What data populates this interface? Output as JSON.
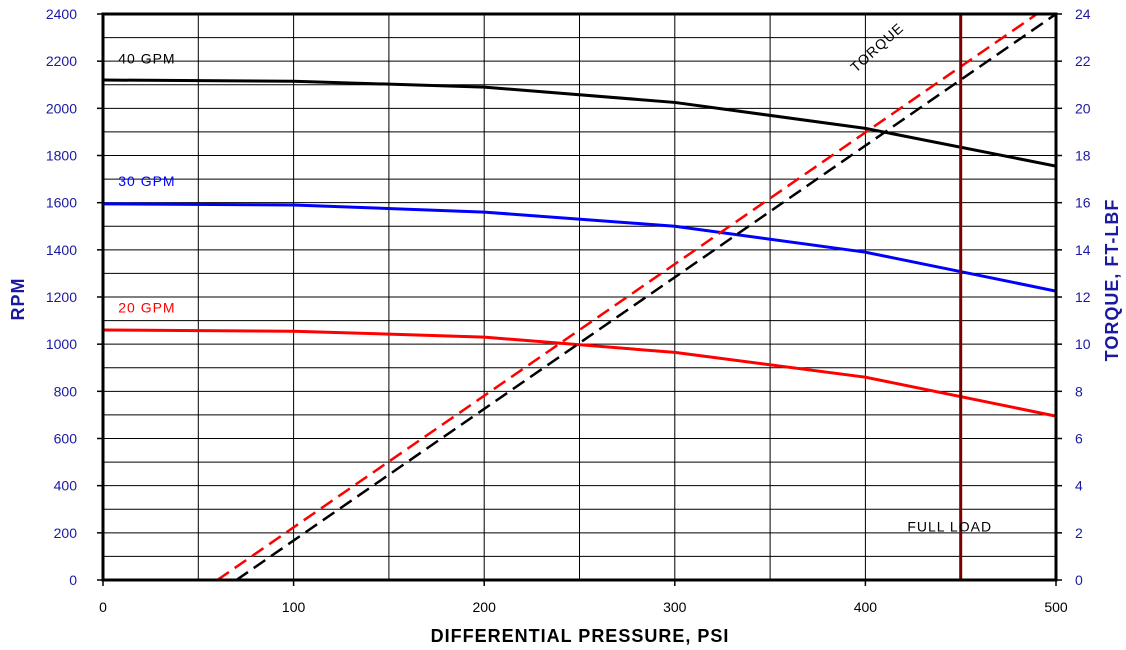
{
  "chart_data": {
    "type": "line",
    "title": "",
    "xlabel": "DIFFERENTIAL PRESSURE, PSI",
    "ylabel": "RPM",
    "y2label": "TORQUE, FT-LBF",
    "xlim": [
      0,
      500
    ],
    "ylim": [
      0,
      2400
    ],
    "y2lim": [
      0,
      24
    ],
    "x_ticks": [
      0,
      100,
      200,
      300,
      400,
      500
    ],
    "y_ticks": [
      0,
      200,
      400,
      600,
      800,
      1000,
      1200,
      1400,
      1600,
      1800,
      2000,
      2200,
      2400
    ],
    "y2_ticks": [
      0,
      2,
      4,
      6,
      8,
      10,
      12,
      14,
      16,
      18,
      20,
      22,
      24
    ],
    "grid": true,
    "colors": {
      "axis_left": "#1a1aa0",
      "axis_right": "#1a1aa0",
      "axis_bottom": "#000000"
    },
    "series": [
      {
        "name": "40 GPM",
        "axis": "left",
        "color": "#000000",
        "style": "solid",
        "x": [
          0,
          100,
          200,
          300,
          400,
          500
        ],
        "y": [
          2120,
          2115,
          2090,
          2025,
          1915,
          1755
        ]
      },
      {
        "name": "30 GPM",
        "axis": "left",
        "color": "#0000ff",
        "style": "solid",
        "x": [
          0,
          100,
          200,
          300,
          400,
          500
        ],
        "y": [
          1595,
          1590,
          1560,
          1500,
          1390,
          1225
        ]
      },
      {
        "name": "20 GPM",
        "axis": "left",
        "color": "#ff0000",
        "style": "solid",
        "x": [
          0,
          100,
          200,
          300,
          400,
          500
        ],
        "y": [
          1060,
          1055,
          1030,
          965,
          860,
          695
        ]
      },
      {
        "name": "",
        "axis": "right",
        "color": "#ff0000",
        "style": "dashed",
        "x": [
          60,
          490
        ],
        "y": [
          0,
          24
        ]
      },
      {
        "name": "",
        "axis": "right",
        "color": "#000000",
        "style": "dashed",
        "x": [
          70,
          500
        ],
        "y": [
          0,
          24
        ]
      }
    ],
    "reference_line": {
      "x": 450,
      "label": "FULL LOAD",
      "color": "#7a0000"
    },
    "annotations": [
      {
        "text": "40 GPM",
        "x": 8,
        "y": 2190,
        "color": "#000000"
      },
      {
        "text": "30 GPM",
        "x": 8,
        "y": 1670,
        "color": "#0000ff"
      },
      {
        "text": "20 GPM",
        "x": 8,
        "y": 1135,
        "color": "#ff0000"
      },
      {
        "text": "TORQUE",
        "x": 395,
        "y": 2150,
        "color": "#000000",
        "rotation": -42
      },
      {
        "text": "FULL LOAD",
        "x": 422,
        "y": 205,
        "color": "#000000"
      }
    ]
  }
}
